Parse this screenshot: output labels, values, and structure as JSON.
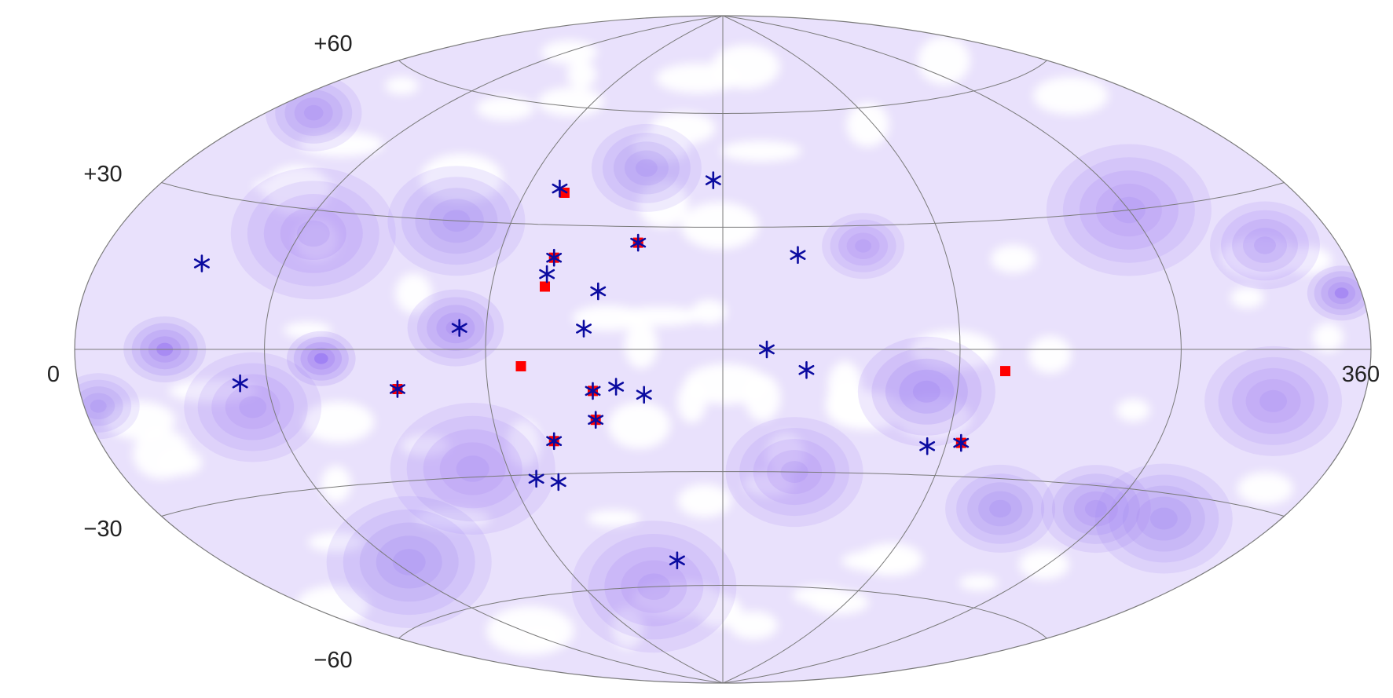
{
  "chart_data": {
    "type": "scatter",
    "projection": "Hammer-Aitoff",
    "title": "",
    "xlabel": "",
    "ylabel": "",
    "xlim": [
      0,
      360
    ],
    "ylim": [
      -90,
      90
    ],
    "grid": true,
    "grid_lon_step": 60,
    "grid_lat": [
      -60,
      -30,
      0,
      30,
      60
    ],
    "tick_labels": {
      "lat_60": "+60",
      "lat_30": "+30",
      "lon_0": "0",
      "lon_360": "360",
      "lat_m30": "−30",
      "lat_m60": "−60"
    },
    "colors": {
      "background_density": "#9B7BF0",
      "density_peak": "#7A4FF2",
      "star": "#0B0BA0",
      "square": "#FF0000",
      "grid": "#7A7A7A"
    },
    "density_blobs": [
      {
        "lon": 76,
        "lat": -2,
        "intensity": 1.0,
        "spread": 5
      },
      {
        "lon": 30,
        "lat": 0,
        "intensity": 0.7,
        "spread": 6
      },
      {
        "lon": 112,
        "lat": 5,
        "intensity": 0.55,
        "spread": 7
      },
      {
        "lon": 232,
        "lat": -10,
        "intensity": 0.6,
        "spread": 10
      },
      {
        "lon": 353,
        "lat": 10,
        "intensity": 0.75,
        "spread": 5
      },
      {
        "lon": 17,
        "lat": 48,
        "intensity": 0.45,
        "spread": 7
      },
      {
        "lon": 335,
        "lat": 20,
        "intensity": 0.4,
        "spread": 8
      },
      {
        "lon": 155,
        "lat": 45,
        "intensity": 0.35,
        "spread": 8
      },
      {
        "lon": 104,
        "lat": 30,
        "intensity": 0.35,
        "spread": 10
      },
      {
        "lon": 64,
        "lat": 25,
        "intensity": 0.3,
        "spread": 12
      },
      {
        "lon": 54,
        "lat": -12,
        "intensity": 0.3,
        "spread": 10
      },
      {
        "lon": 110,
        "lat": -28,
        "intensity": 0.3,
        "spread": 12
      },
      {
        "lon": 295,
        "lat": -35,
        "intensity": 0.45,
        "spread": 8
      },
      {
        "lon": 265,
        "lat": -37,
        "intensity": 0.35,
        "spread": 8
      },
      {
        "lon": 320,
        "lat": -35,
        "intensity": 0.35,
        "spread": 10
      },
      {
        "lon": 65,
        "lat": -48,
        "intensity": 0.35,
        "spread": 12
      },
      {
        "lon": 218,
        "lat": 25,
        "intensity": 0.3,
        "spread": 6
      },
      {
        "lon": 300,
        "lat": 30,
        "intensity": 0.3,
        "spread": 12
      },
      {
        "lon": 5,
        "lat": -10,
        "intensity": 0.35,
        "spread": 6
      },
      {
        "lon": 200,
        "lat": -30,
        "intensity": 0.3,
        "spread": 10
      },
      {
        "lon": 330,
        "lat": -10,
        "intensity": 0.3,
        "spread": 10
      },
      {
        "lon": 150,
        "lat": -60,
        "intensity": 0.3,
        "spread": 12
      }
    ],
    "series": [
      {
        "marker": "asterisk",
        "color": "#0B0BA0",
        "points": [
          {
            "lon": 35,
            "lat": 17
          },
          {
            "lon": 52,
            "lat": -7
          },
          {
            "lon": 96,
            "lat": -9
          },
          {
            "lon": 113,
            "lat": 5
          },
          {
            "lon": 134,
            "lat": 18
          },
          {
            "lon": 135,
            "lat": 22
          },
          {
            "lon": 130,
            "lat": 39
          },
          {
            "lon": 148,
            "lat": 14
          },
          {
            "lon": 145,
            "lat": 5
          },
          {
            "lon": 157,
            "lat": 26
          },
          {
            "lon": 177,
            "lat": 42
          },
          {
            "lon": 200,
            "lat": 23
          },
          {
            "lon": 191,
            "lat": 0
          },
          {
            "lon": 201,
            "lat": -5
          },
          {
            "lon": 147,
            "lat": -10
          },
          {
            "lon": 153,
            "lat": -9
          },
          {
            "lon": 160,
            "lat": -11
          },
          {
            "lon": 147,
            "lat": -17
          },
          {
            "lon": 135,
            "lat": -22
          },
          {
            "lon": 127,
            "lat": -31
          },
          {
            "lon": 133,
            "lat": -32
          },
          {
            "lon": 163,
            "lat": -53
          },
          {
            "lon": 235,
            "lat": -23
          },
          {
            "lon": 244,
            "lat": -22
          }
        ]
      },
      {
        "marker": "square",
        "color": "#FF0000",
        "points": [
          {
            "lon": 132,
            "lat": 38
          },
          {
            "lon": 134,
            "lat": 15
          },
          {
            "lon": 129,
            "lat": -4
          },
          {
            "lon": 252,
            "lat": -5
          },
          {
            "lon": 157,
            "lat": 26
          },
          {
            "lon": 135,
            "lat": 22
          },
          {
            "lon": 96,
            "lat": -9
          },
          {
            "lon": 147,
            "lat": -10
          },
          {
            "lon": 147,
            "lat": -17
          },
          {
            "lon": 135,
            "lat": -22
          },
          {
            "lon": 244,
            "lat": -22
          }
        ]
      }
    ]
  }
}
